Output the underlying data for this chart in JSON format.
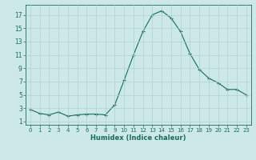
{
  "x": [
    0,
    1,
    2,
    3,
    4,
    5,
    6,
    7,
    8,
    9,
    10,
    11,
    12,
    13,
    14,
    15,
    16,
    17,
    18,
    19,
    20,
    21,
    22,
    23
  ],
  "y": [
    2.8,
    2.2,
    2.0,
    2.4,
    1.8,
    2.0,
    2.1,
    2.1,
    2.0,
    3.5,
    7.2,
    11.0,
    14.5,
    17.0,
    17.6,
    16.5,
    14.5,
    11.2,
    8.8,
    7.5,
    6.8,
    5.8,
    5.8,
    5.0
  ],
  "line_color": "#1a6b5a",
  "marker": "+",
  "marker_size": 3,
  "bg_color": "#cce8e8",
  "grid_color": "#b0d0d0",
  "tick_color": "#1a6b5a",
  "xlabel": "Humidex (Indice chaleur)",
  "xlim": [
    -0.5,
    23.5
  ],
  "ylim": [
    0.5,
    18.5
  ],
  "yticks": [
    1,
    3,
    5,
    7,
    9,
    11,
    13,
    15,
    17
  ],
  "xticks": [
    0,
    1,
    2,
    3,
    4,
    5,
    6,
    7,
    8,
    9,
    10,
    11,
    12,
    13,
    14,
    15,
    16,
    17,
    18,
    19,
    20,
    21,
    22,
    23
  ]
}
